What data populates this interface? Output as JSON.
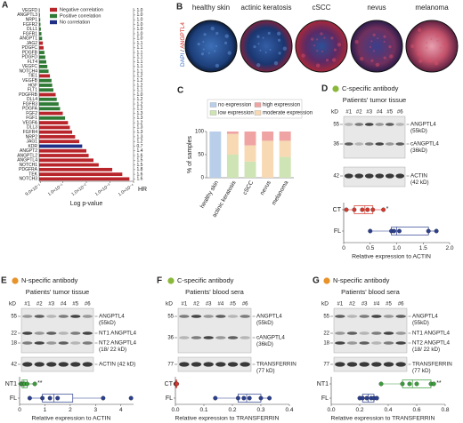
{
  "chart_data": [
    {
      "type": "barh",
      "label": "A",
      "categories": [
        "VEGFD",
        "ANGPTL3",
        "NRP1",
        "FGFR2",
        "DLL1",
        "FGFR1",
        "ANGPT1",
        "JAG2",
        "PDGFC",
        "PDGFB",
        "PDGFD",
        "FLT4",
        "VEGFC",
        "NOTCH4",
        "TIE1",
        "VEGFB",
        "HGF",
        "FLT1",
        "PDGFRB",
        "DLL4",
        "FGFR3",
        "PDGFA",
        "FGF2",
        "FGF1",
        "VEGFA",
        "DLL3",
        "FGFR4",
        "NRP2",
        "JAG1",
        "KDR",
        "ANGPT2",
        "ANGPTL2",
        "ANGPTL4",
        "NOTCH1",
        "PDGFRA",
        "TEK",
        "NOTCH3"
      ],
      "values": [
        0.95,
        0.93,
        0.9,
        0.88,
        0.85,
        0.8,
        0.75,
        0.7,
        0.65,
        0.6,
        0.55,
        0.5,
        0.45,
        0.4,
        0.35,
        0.3,
        0.28,
        0.25,
        0.2,
        0.18,
        0.15,
        0.13,
        0.1,
        0.08,
        0.06,
        0.05,
        0.04,
        0.03,
        0.02,
        0.015,
        0.01,
        0.008,
        0.005,
        0.003,
        0.0008,
        0.0003,
        0.00015
      ],
      "groups": [
        1,
        1,
        1,
        1,
        1,
        1,
        1,
        0,
        0,
        1,
        1,
        1,
        1,
        1,
        0,
        1,
        1,
        1,
        0,
        1,
        1,
        1,
        0,
        1,
        0,
        0,
        0,
        0,
        0,
        2,
        0,
        0,
        0,
        0,
        0,
        0,
        0
      ],
      "legend": [
        {
          "name": "Negative correlation",
          "color": "#b8262b"
        },
        {
          "name": "Positive correlation",
          "color": "#2f7a35"
        },
        {
          "name": "No correlation",
          "color": "#1f2f86"
        }
      ],
      "hr_label": "HR",
      "hr": [
        "1.0",
        "1.0",
        "1.0",
        "1.0",
        "1.0",
        "1.0",
        "1.0",
        "1.1",
        "1.1",
        "1.1",
        "1.1",
        "1.1",
        "1.1",
        "1.1",
        "1.2",
        "1.2",
        "1.2",
        "1.1",
        "1.0",
        "1.2",
        "1.2",
        "1.2",
        "1.3",
        "1.3",
        "1.2",
        "1.3",
        "1.3",
        "1.3",
        "1.2",
        "0.7",
        "1.4",
        "1.6",
        "1.5",
        "1.5",
        "1.8",
        "1.6",
        "1.6"
      ],
      "xlabel": "Log p-value",
      "xscale": "log",
      "xlim": [
        1,
        0.0001
      ],
      "xticks": [
        {
          "value": 0.9,
          "label": "9.0×10⁻¹"
        },
        {
          "value": 0.1,
          "label": "1.0×10⁻¹"
        },
        {
          "value": 0.01,
          "label": "1.0×10⁻²"
        },
        {
          "value": 0.001,
          "label": "1.0×10⁻³"
        },
        {
          "value": 0.0001,
          "label": "1.0×10⁻⁴"
        }
      ]
    },
    {
      "type": "stacked_bar",
      "label": "C",
      "categories": [
        "healthy skin",
        "actinic keratosis",
        "cSCC",
        "nevus",
        "melanoma"
      ],
      "series": [
        {
          "name": "no expression",
          "color": "#b9cfe9",
          "values": [
            100,
            0,
            0,
            0,
            0
          ]
        },
        {
          "name": "low expression",
          "color": "#cfe4b4",
          "values": [
            0,
            50,
            35,
            0,
            45
          ]
        },
        {
          "name": "moderate expression",
          "color": "#f7d9b3",
          "values": [
            0,
            45,
            35,
            80,
            35
          ]
        },
        {
          "name": "high expression",
          "color": "#f0a3a3",
          "values": [
            0,
            5,
            30,
            20,
            20
          ]
        }
      ],
      "ylabel": "% of samples",
      "ylim": [
        0,
        100
      ],
      "yticks": [
        0,
        50,
        100
      ]
    },
    {
      "type": "box_strip",
      "xlabel": "Relative expression to ACTIN",
      "xlim": [
        0,
        2
      ],
      "xticks": [
        0,
        0.5,
        {
          "value": 1,
          "label": "1.0"
        },
        1.5,
        {
          "value": 2,
          "label": "2.0"
        }
      ],
      "rows": [
        {
          "name": "CT",
          "color": "#d4382d",
          "values": [
            0.05,
            0.2,
            0.35,
            0.45,
            0.55,
            0.75
          ],
          "box": [
            0.05,
            0.2,
            0.4,
            0.55,
            0.75
          ],
          "significance": "*"
        },
        {
          "name": "FL",
          "color": "#2b3f8f",
          "values": [
            0.5,
            0.9,
            0.95,
            1.05,
            1.6,
            1.75
          ],
          "box": [
            0.5,
            0.9,
            1.0,
            1.6,
            1.75
          ]
        }
      ]
    },
    {
      "type": "box_strip",
      "xlabel": "Relative expression to ACTIN",
      "xlim": [
        0,
        4.5
      ],
      "xticks": [
        0,
        1,
        2,
        3,
        4
      ],
      "rows": [
        {
          "name": "NT1",
          "color": "#3a9c3a",
          "values": [
            0.05,
            0.1,
            0.15,
            0.2,
            0.3,
            0.6
          ],
          "box": [
            0.05,
            0.1,
            0.17,
            0.3,
            0.6
          ],
          "significance": "**"
        },
        {
          "name": "FL",
          "color": "#2b3f8f",
          "values": [
            0.4,
            0.9,
            1.2,
            1.5,
            3.3,
            4.4
          ],
          "box": [
            0.4,
            0.9,
            1.35,
            2.1,
            3.3
          ]
        }
      ]
    },
    {
      "type": "box_strip",
      "xlabel": "Relative expression to TRANSFERRIN",
      "xlim": [
        0,
        0.4
      ],
      "xticks": [
        {
          "value": 0,
          "label": "0.0"
        },
        0.1,
        0.2,
        0.3,
        0.4
      ],
      "rows": [
        {
          "name": "CT",
          "color": "#d4382d",
          "values": [
            0.001,
            0.002,
            0.002,
            0.003,
            0.004,
            0.005
          ],
          "box": [
            0.001,
            0.002,
            0.0025,
            0.004,
            0.005
          ]
        },
        {
          "name": "FL",
          "color": "#2b3f8f",
          "values": [
            0.14,
            0.22,
            0.24,
            0.26,
            0.3,
            0.33
          ],
          "box": [
            0.14,
            0.22,
            0.25,
            0.3,
            0.33
          ]
        }
      ]
    },
    {
      "type": "box_strip",
      "xlabel": "Relative expression to TRANSFERRIN",
      "xlim": [
        0,
        0.8
      ],
      "xticks": [
        {
          "value": 0,
          "label": "0.0"
        },
        0.2,
        0.4,
        0.6,
        0.8
      ],
      "rows": [
        {
          "name": "NT1",
          "color": "#3a9c3a",
          "values": [
            0.35,
            0.5,
            0.55,
            0.6,
            0.7,
            0.72
          ],
          "box": [
            0.35,
            0.5,
            0.57,
            0.7,
            0.72
          ],
          "significance": "**"
        },
        {
          "name": "FL",
          "color": "#2b3f8f",
          "values": [
            0.2,
            0.22,
            0.25,
            0.28,
            0.3,
            0.32
          ],
          "box": [
            0.2,
            0.22,
            0.26,
            0.3,
            0.32
          ]
        }
      ]
    }
  ],
  "images": {
    "label": "B",
    "stain": [
      {
        "text": "DAPI",
        "color": "#3a6fc4"
      },
      {
        "text": "/",
        "color": "#333333"
      },
      {
        "text": "ANGPTL4",
        "color": "#d6281f"
      }
    ],
    "titles": [
      "healthy skin",
      "actinic keratosis",
      "cSCC",
      "nevus",
      "melanoma"
    ]
  },
  "blots": [
    {
      "label": "D",
      "antibody": "C-specific antibody",
      "antibody_color": "#8ab83a",
      "source": "Patients' tumor tissue",
      "unit": "kD",
      "lanes": [
        "#1",
        "#2",
        "#3",
        "#4",
        "#5",
        "#6"
      ],
      "markers": [
        {
          "kd": 55,
          "label": [
            "ANGPTL4",
            "(55kD)"
          ]
        },
        {
          "kd": 36,
          "label": [
            "cANGPTL4",
            "(36kD)"
          ]
        },
        {
          "kd": 42,
          "label": [
            "ACTIN",
            "(42 kD)"
          ]
        }
      ]
    },
    {
      "label": "E",
      "antibody": "N-specific antibody",
      "antibody_color": "#e8922a",
      "source": "Patients' tumor tissue",
      "unit": "kD",
      "lanes": [
        "#1",
        "#2",
        "#3",
        "#4",
        "#5",
        "#6"
      ],
      "markers": [
        {
          "kd": 55,
          "label": [
            "ANGPTL4",
            "(55kD)"
          ]
        },
        {
          "kd": 22,
          "label": [
            "NT1 ANGPTL4"
          ]
        },
        {
          "kd": 18,
          "label": [
            "NT2 ANGPTL4",
            "(18/ 22 kD)"
          ]
        },
        {
          "kd": 42,
          "label": [
            "ACTIN (42 kD)"
          ]
        }
      ]
    },
    {
      "label": "F",
      "antibody": "C-specific antibody",
      "antibody_color": "#8ab83a",
      "source": "Patients' blood sera",
      "unit": "kD",
      "lanes": [
        "#1",
        "#2",
        "#3",
        "#4",
        "#5",
        "#6"
      ],
      "markers": [
        {
          "kd": 55,
          "label": [
            "ANGPTL4",
            "(55kD)"
          ]
        },
        {
          "kd": 36,
          "label": [
            "cANGPTL4",
            "(36kD)"
          ]
        },
        {
          "kd": 77,
          "label": [
            "TRANSFERRIN",
            "(77 kD)"
          ]
        }
      ]
    },
    {
      "label": "G",
      "antibody": "N-specific antibody",
      "antibody_color": "#e8922a",
      "source": "Patients' blood sera",
      "unit": "kD",
      "lanes": [
        "#1",
        "#2",
        "#3",
        "#4",
        "#5",
        "#6"
      ],
      "markers": [
        {
          "kd": 55,
          "label": [
            "ANGPTL4",
            "(55kD)"
          ]
        },
        {
          "kd": 22,
          "label": [
            "NT1 ANGPTL4"
          ]
        },
        {
          "kd": 18,
          "label": [
            "NT2 ANGPTL4",
            "(18/ 22 kD)"
          ]
        },
        {
          "kd": 77,
          "label": [
            "TRANSFERRIN",
            "(77 kD)"
          ]
        }
      ]
    }
  ]
}
